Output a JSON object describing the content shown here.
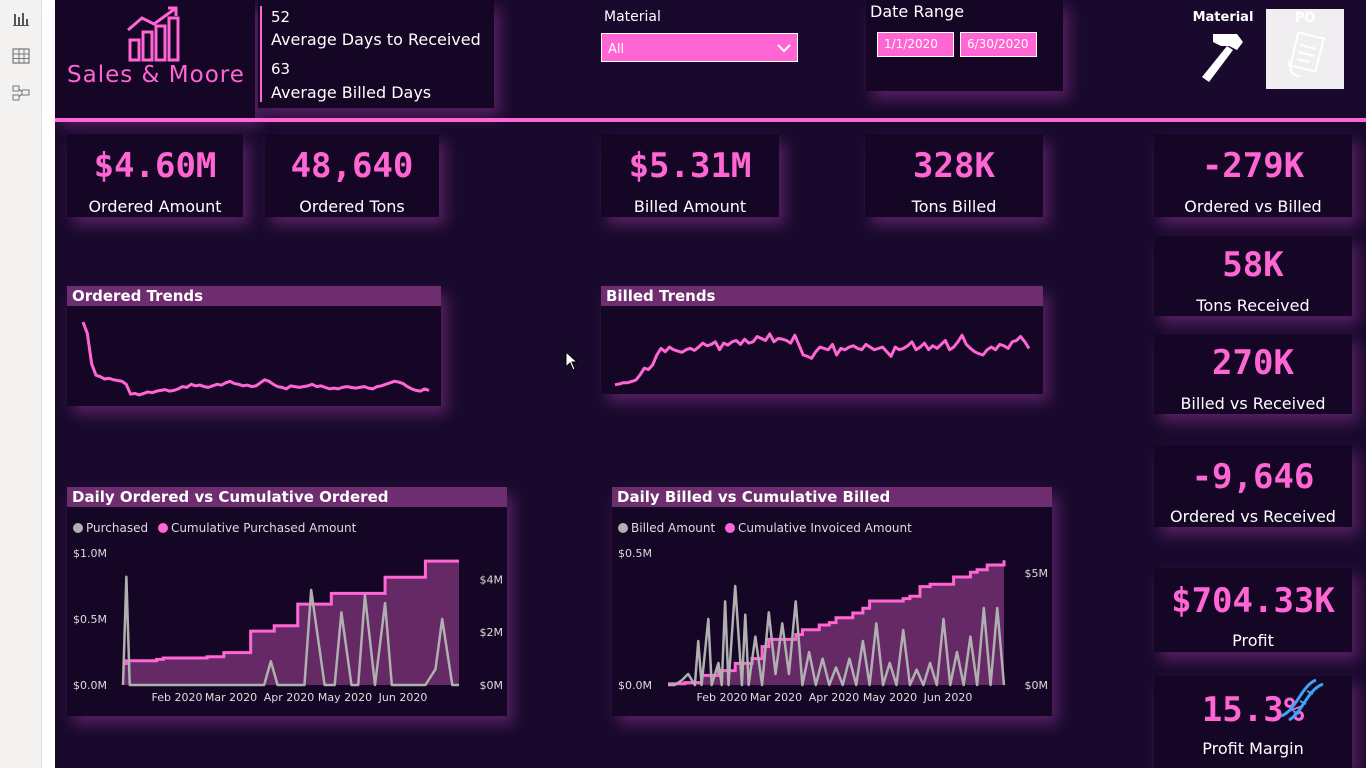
{
  "header": {
    "brand": "Sales & Moore",
    "avg_days_received_value": "52",
    "avg_days_received_label": "Average Days to Received",
    "avg_billed_days_value": "63",
    "avg_billed_days_label": "Average Billed Days"
  },
  "filters": {
    "material_label": "Material",
    "material_value": "All",
    "date_range_label": "Date Range",
    "date_start": "1/1/2020",
    "date_end": "6/30/2020"
  },
  "buttons": {
    "material_button_label": "Material",
    "po_button_label": "PO"
  },
  "kpis": {
    "ordered_amount": {
      "value": "$4.60M",
      "label": "Ordered Amount"
    },
    "ordered_tons": {
      "value": "48,640",
      "label": "Ordered Tons"
    },
    "billed_amount": {
      "value": "$5.31M",
      "label": "Billed Amount"
    },
    "tons_billed": {
      "value": "328K",
      "label": "Tons Billed"
    },
    "ordered_vs_billed": {
      "value": "-279K",
      "label": "Ordered vs Billed"
    },
    "tons_received": {
      "value": "58K",
      "label": "Tons Received"
    },
    "billed_vs_received": {
      "value": "270K",
      "label": "Billed vs Received"
    },
    "ordered_vs_received": {
      "value": "-9,646",
      "label": "Ordered vs Received"
    },
    "profit": {
      "value": "$704.33K",
      "label": "Profit"
    },
    "profit_margin": {
      "value": "15.3%",
      "label": "Profit Margin"
    }
  },
  "colors": {
    "accent": "#ff66d4",
    "background": "#190a2d",
    "panel": "#150626",
    "title_bar": "#6e2d6e",
    "gray_series": "#b0b0b0",
    "area_fill": "#6e2d6e"
  },
  "chart_data": [
    {
      "id": "ordered_trends",
      "type": "line",
      "title": "Ordered Trends",
      "x": [
        0,
        1,
        2,
        3,
        4,
        5,
        6,
        7,
        8,
        9,
        10,
        11,
        12,
        13,
        14,
        15,
        16,
        17,
        18,
        19,
        20,
        21,
        22,
        23,
        24,
        25,
        26,
        27,
        28,
        29,
        30,
        31,
        32,
        33,
        34,
        35,
        36,
        37,
        38,
        39,
        40,
        41,
        42,
        43,
        44,
        45,
        46,
        47,
        48,
        49,
        50,
        51,
        52,
        53,
        54,
        55,
        56,
        57,
        58,
        59,
        60,
        61,
        62,
        63,
        64,
        65,
        66,
        67,
        68,
        69,
        70,
        71,
        72,
        73,
        74,
        75,
        76,
        77,
        78,
        79,
        80
      ],
      "values": [
        100,
        85,
        45,
        30,
        28,
        25,
        26,
        24,
        23,
        22,
        18,
        5,
        6,
        4,
        6,
        8,
        7,
        9,
        10,
        11,
        9,
        10,
        12,
        15,
        14,
        18,
        16,
        17,
        15,
        14,
        16,
        18,
        17,
        20,
        22,
        19,
        18,
        16,
        17,
        15,
        16,
        20,
        24,
        22,
        18,
        15,
        14,
        12,
        16,
        15,
        14,
        15,
        16,
        18,
        15,
        16,
        14,
        12,
        13,
        12,
        14,
        15,
        14,
        13,
        14,
        15,
        13,
        12,
        15,
        16,
        18,
        20,
        22,
        21,
        19,
        15,
        12,
        10,
        9,
        12,
        10
      ],
      "ylim": [
        0,
        100
      ]
    },
    {
      "id": "billed_trends",
      "type": "line",
      "title": "Billed Trends",
      "x": [
        0,
        1,
        2,
        3,
        4,
        5,
        6,
        7,
        8,
        9,
        10,
        11,
        12,
        13,
        14,
        15,
        16,
        17,
        18,
        19,
        20,
        21,
        22,
        23,
        24,
        25,
        26,
        27,
        28,
        29,
        30,
        31,
        32,
        33,
        34,
        35,
        36,
        37,
        38,
        39,
        40,
        41,
        42,
        43,
        44,
        45,
        46,
        47,
        48,
        49,
        50,
        51,
        52,
        53,
        54,
        55,
        56,
        57,
        58,
        59,
        60,
        61,
        62,
        63,
        64,
        65,
        66,
        67,
        68,
        69,
        70,
        71,
        72,
        73,
        74,
        75,
        76,
        77,
        78,
        79,
        80,
        81,
        82,
        83,
        84,
        85,
        86,
        87,
        88,
        89,
        90,
        91,
        92,
        93,
        94,
        95,
        96,
        97,
        98,
        99
      ],
      "values": [
        5,
        6,
        8,
        8,
        10,
        12,
        20,
        30,
        28,
        35,
        50,
        60,
        55,
        62,
        58,
        56,
        54,
        58,
        60,
        57,
        62,
        68,
        64,
        66,
        70,
        58,
        68,
        65,
        70,
        72,
        66,
        74,
        68,
        70,
        78,
        75,
        72,
        82,
        70,
        75,
        74,
        72,
        68,
        80,
        65,
        50,
        48,
        45,
        55,
        62,
        60,
        58,
        66,
        50,
        60,
        58,
        62,
        64,
        60,
        58,
        66,
        62,
        58,
        60,
        62,
        55,
        48,
        62,
        58,
        60,
        64,
        70,
        58,
        62,
        68,
        58,
        64,
        60,
        66,
        72,
        58,
        62,
        70,
        80,
        66,
        60,
        55,
        52,
        50,
        58,
        62,
        58,
        66,
        64,
        60,
        70,
        72,
        78,
        70,
        60
      ],
      "ylim": [
        0,
        100
      ]
    },
    {
      "id": "daily_ordered_vs_cumulative",
      "type": "area",
      "title": "Daily Ordered vs Cumulative Ordered",
      "legend": [
        "Purchased",
        "Cumulative Purchased Amount"
      ],
      "x_ticks": [
        "Feb 2020",
        "Mar 2020",
        "Apr 2020",
        "May 2020",
        "Jun 2020"
      ],
      "y_left_ticks": [
        "$0.0M",
        "$0.5M",
        "$1.0M"
      ],
      "y_right_ticks": [
        "$0M",
        "$2M",
        "$4M"
      ],
      "series": [
        {
          "name": "Purchased",
          "axis": "left_millions",
          "x": [
            0,
            1,
            2,
            3,
            4,
            5,
            8,
            10,
            12,
            15,
            18,
            20,
            22,
            25,
            27,
            30,
            32,
            34,
            38,
            40,
            42,
            44,
            46,
            48,
            50,
            52,
            54,
            56,
            60,
            63,
            65,
            68,
            70,
            72,
            75,
            78,
            80,
            83,
            85,
            88,
            90,
            93,
            95,
            98,
            100
          ],
          "values": [
            0,
            0.82,
            0,
            0,
            0,
            0,
            0,
            0,
            0,
            0,
            0,
            0,
            0,
            0,
            0,
            0,
            0,
            0,
            0,
            0,
            0,
            0.18,
            0,
            0,
            0,
            0,
            0,
            0.72,
            0,
            0,
            0.55,
            0,
            0,
            0.68,
            0,
            0.62,
            0,
            0,
            0,
            0,
            0,
            0.12,
            0.5,
            0,
            0
          ]
        },
        {
          "name": "Cumulative Purchased Amount",
          "axis": "right_millions",
          "x": [
            0,
            1,
            2,
            3,
            8,
            10,
            12,
            15,
            18,
            20,
            22,
            25,
            30,
            34,
            35,
            38,
            40,
            45,
            48,
            50,
            52,
            54,
            60,
            62,
            65,
            70,
            75,
            78,
            80,
            85,
            90,
            95,
            100
          ],
          "values": [
            0.8,
            0.9,
            0.9,
            0.9,
            0.9,
            0.95,
            1.0,
            1.0,
            1.0,
            1.0,
            1.0,
            1.05,
            1.2,
            1.2,
            1.2,
            2.0,
            2.0,
            2.2,
            2.2,
            2.2,
            3.0,
            3.0,
            3.0,
            3.4,
            3.4,
            3.4,
            3.4,
            4.0,
            4.0,
            4.0,
            4.6,
            4.6,
            4.6
          ]
        }
      ]
    },
    {
      "id": "daily_billed_vs_cumulative",
      "type": "area",
      "title": "Daily Billed vs Cumulative Billed",
      "legend": [
        "Billed Amount",
        "Cumulative Invoiced Amount"
      ],
      "x_ticks": [
        "Feb 2020",
        "Mar 2020",
        "Apr 2020",
        "May 2020",
        "Jun 2020"
      ],
      "y_left_ticks": [
        "$0.0M",
        "$0.5M"
      ],
      "y_right_ticks": [
        "$0M",
        "$5M"
      ],
      "series": [
        {
          "name": "Billed Amount",
          "axis": "left_millions",
          "x": [
            0,
            2,
            4,
            6,
            8,
            9,
            10,
            12,
            13,
            15,
            16,
            17,
            18,
            20,
            22,
            23,
            24,
            26,
            28,
            30,
            32,
            34,
            36,
            38,
            40,
            42,
            44,
            46,
            48,
            50,
            52,
            54,
            56,
            58,
            60,
            62,
            64,
            66,
            68,
            70,
            72,
            74,
            76,
            78,
            80,
            82,
            84,
            86,
            88,
            90,
            92,
            94,
            96,
            98,
            100
          ],
          "values": [
            0,
            0,
            0.02,
            0.05,
            0,
            0.2,
            0,
            0.3,
            0,
            0.1,
            0,
            0.38,
            0,
            0.45,
            0,
            0.32,
            0,
            0.22,
            0,
            0.33,
            0.05,
            0.28,
            0.05,
            0.38,
            0,
            0.15,
            0,
            0.12,
            0,
            0.08,
            0,
            0.12,
            0,
            0.2,
            0,
            0.28,
            0,
            0.1,
            0,
            0.25,
            0,
            0.07,
            0,
            0.1,
            0,
            0.3,
            0,
            0.15,
            0,
            0.22,
            0,
            0.35,
            0,
            0.35,
            0
          ]
        },
        {
          "name": "Cumulative Invoiced Amount",
          "axis": "right_millions",
          "x": [
            0,
            5,
            10,
            15,
            20,
            25,
            28,
            30,
            35,
            38,
            40,
            45,
            48,
            50,
            55,
            58,
            60,
            65,
            70,
            72,
            75,
            78,
            80,
            85,
            88,
            90,
            92,
            95,
            100
          ],
          "values": [
            0.05,
            0.1,
            0.4,
            0.6,
            0.9,
            1.1,
            1.6,
            1.9,
            1.9,
            2.1,
            2.3,
            2.5,
            2.6,
            2.8,
            3.0,
            3.2,
            3.5,
            3.5,
            3.6,
            3.7,
            4.1,
            4.2,
            4.2,
            4.5,
            4.5,
            4.7,
            4.8,
            5.0,
            5.2
          ]
        }
      ]
    }
  ]
}
